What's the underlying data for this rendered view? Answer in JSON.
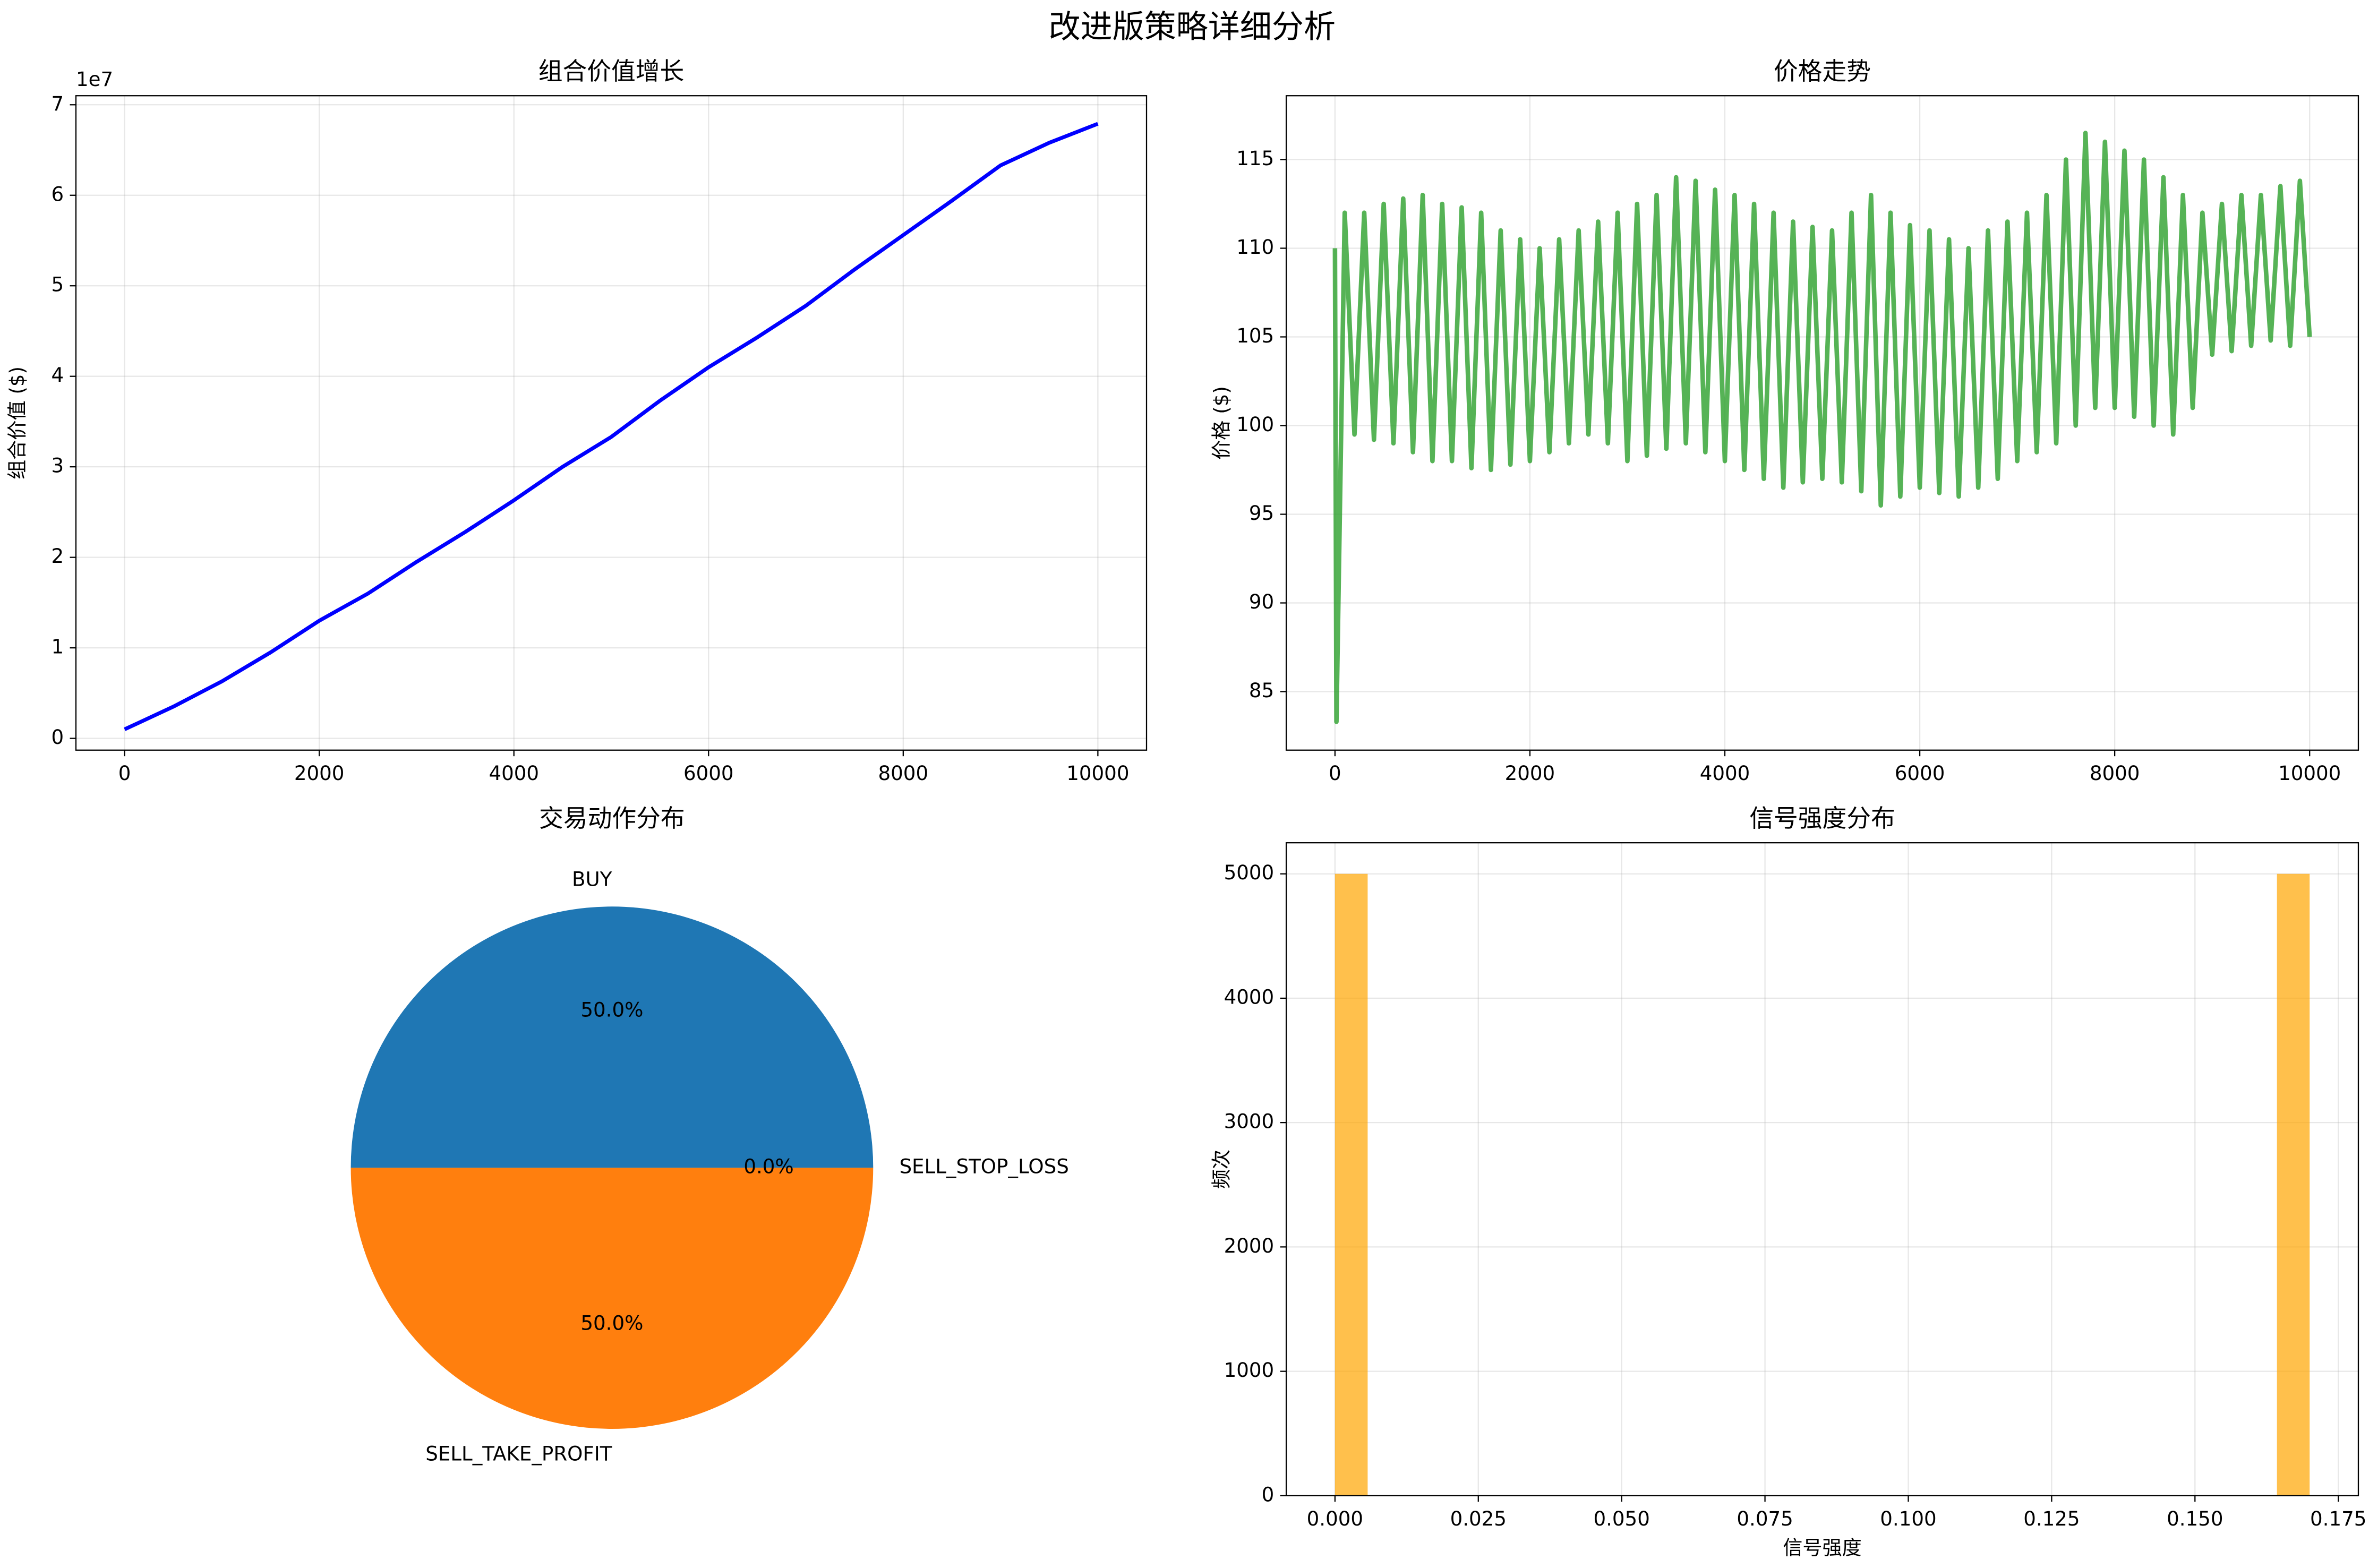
{
  "title": "改进版策略详细分析",
  "chart_data": [
    {
      "type": "line",
      "title": "组合价值增长",
      "ylabel": "组合价值 ($)",
      "y_offset_label": "1e7",
      "x": [
        0,
        500,
        1000,
        1500,
        2000,
        2500,
        3000,
        3500,
        4000,
        4500,
        5000,
        5500,
        6000,
        6500,
        7000,
        7500,
        8000,
        8500,
        9000,
        9500,
        10000
      ],
      "series": [
        {
          "color": "#0000ff",
          "values": [
            1000000,
            3500000,
            6300000,
            9500000,
            13000000,
            16000000,
            19500000,
            22800000,
            26300000,
            30000000,
            33300000,
            37300000,
            41000000,
            44300000,
            47800000,
            51800000,
            55600000,
            59400000,
            63300000,
            65800000,
            67900000
          ]
        }
      ],
      "xlim": [
        -500,
        10500
      ],
      "xticks": [
        0,
        2000,
        4000,
        6000,
        8000,
        10000
      ],
      "ylim": [
        -1300000,
        71000000
      ],
      "yticks": [
        {
          "value": 0,
          "label": "0"
        },
        {
          "value": 10000000,
          "label": "1"
        },
        {
          "value": 20000000,
          "label": "2"
        },
        {
          "value": 30000000,
          "label": "3"
        },
        {
          "value": 40000000,
          "label": "4"
        },
        {
          "value": 50000000,
          "label": "5"
        },
        {
          "value": 60000000,
          "label": "6"
        },
        {
          "value": 70000000,
          "label": "7"
        }
      ],
      "grid": true,
      "line_width": 2.5
    },
    {
      "type": "line",
      "title": "价格走势",
      "ylabel": "价格 ($)",
      "x": [
        0,
        15,
        100,
        200,
        300,
        400,
        500,
        600,
        700,
        800,
        900,
        1000,
        1100,
        1200,
        1300,
        1400,
        1500,
        1600,
        1700,
        1800,
        1900,
        2000,
        2100,
        2200,
        2300,
        2400,
        2500,
        2600,
        2700,
        2800,
        2900,
        3000,
        3100,
        3200,
        3300,
        3400,
        3500,
        3600,
        3700,
        3800,
        3900,
        4000,
        4100,
        4200,
        4300,
        4400,
        4500,
        4600,
        4700,
        4800,
        4900,
        5000,
        5100,
        5200,
        5300,
        5400,
        5500,
        5600,
        5700,
        5800,
        5900,
        6000,
        6100,
        6200,
        6300,
        6400,
        6500,
        6600,
        6700,
        6800,
        6900,
        7000,
        7100,
        7200,
        7300,
        7400,
        7500,
        7600,
        7700,
        7800,
        7900,
        8000,
        8100,
        8200,
        8300,
        8400,
        8500,
        8600,
        8700,
        8800,
        8900,
        9000,
        9100,
        9200,
        9300,
        9400,
        9500,
        9600,
        9700,
        9800,
        9900,
        10000
      ],
      "series": [
        {
          "color": "#2ca02c",
          "values": [
            110,
            83.3,
            112,
            99.5,
            112,
            99.2,
            112.5,
            99,
            112.8,
            98.5,
            113,
            98,
            112.5,
            98,
            112.3,
            97.6,
            112,
            97.5,
            111,
            97.8,
            110.5,
            98,
            110,
            98.5,
            110.5,
            99,
            111,
            99.5,
            111.5,
            99,
            112,
            98,
            112.5,
            98.3,
            113,
            98.7,
            114,
            99,
            113.8,
            98.5,
            113.3,
            98,
            113,
            97.5,
            112.5,
            97,
            112,
            96.5,
            111.5,
            96.8,
            111.2,
            97,
            111,
            96.8,
            112,
            96.3,
            113,
            95.5,
            112,
            96,
            111.3,
            96.5,
            111,
            96.2,
            110.5,
            96,
            110,
            96.5,
            111,
            97,
            111.5,
            98,
            112,
            98.5,
            113,
            99,
            115,
            100,
            116.5,
            101,
            116,
            101,
            115.5,
            100.5,
            115,
            100,
            114,
            99.5,
            113,
            101,
            112,
            104,
            112.5,
            104.2,
            113,
            104.5,
            113,
            104.8,
            113.5,
            104.5,
            113.8,
            105
          ]
        }
      ],
      "xlim": [
        -500,
        10500
      ],
      "xticks": [
        0,
        2000,
        4000,
        6000,
        8000,
        10000
      ],
      "ylim": [
        81.7,
        118.6
      ],
      "yticks": [
        85,
        90,
        95,
        100,
        105,
        110,
        115
      ],
      "grid": true,
      "line_width": 3,
      "opacity": 0.8
    },
    {
      "type": "pie",
      "title": "交易动作分布",
      "categories": [
        "BUY",
        "SELL_TAKE_PROFIT",
        "SELL_STOP_LOSS"
      ],
      "values": [
        50,
        50,
        0
      ],
      "value_labels": [
        "50.0%",
        "50.0%",
        "0.0%"
      ],
      "colors": [
        "#1f77b4",
        "#ff7f0e",
        "#2ca02c"
      ]
    },
    {
      "type": "histogram",
      "title": "信号强度分布",
      "xlabel": "信号强度",
      "ylabel": "频次",
      "bins": [
        0,
        0.0057,
        0.0113,
        0.017,
        0.0227,
        0.0283,
        0.034,
        0.0397,
        0.0453,
        0.051,
        0.0567,
        0.0623,
        0.068,
        0.0737,
        0.0793,
        0.085,
        0.0907,
        0.0963,
        0.102,
        0.1077,
        0.1133,
        0.119,
        0.1247,
        0.1303,
        0.136,
        0.1417,
        0.1473,
        0.153,
        0.1587,
        0.1643,
        0.17
      ],
      "values": [
        5000,
        0,
        0,
        0,
        0,
        0,
        0,
        0,
        0,
        0,
        0,
        0,
        0,
        0,
        0,
        0,
        0,
        0,
        0,
        0,
        0,
        0,
        0,
        0,
        0,
        0,
        0,
        0,
        0,
        5000
      ],
      "color": "#ffa500",
      "opacity": 0.7,
      "xlim": [
        -0.0085,
        0.1785
      ],
      "xticks": [
        {
          "value": 0,
          "label": "0.000"
        },
        {
          "value": 0.025,
          "label": "0.025"
        },
        {
          "value": 0.05,
          "label": "0.050"
        },
        {
          "value": 0.075,
          "label": "0.075"
        },
        {
          "value": 0.1,
          "label": "0.100"
        },
        {
          "value": 0.125,
          "label": "0.125"
        },
        {
          "value": 0.15,
          "label": "0.150"
        },
        {
          "value": 0.175,
          "label": "0.175"
        }
      ],
      "ylim": [
        0,
        5250
      ],
      "yticks": [
        0,
        1000,
        2000,
        3000,
        4000,
        5000
      ],
      "grid": true
    }
  ]
}
